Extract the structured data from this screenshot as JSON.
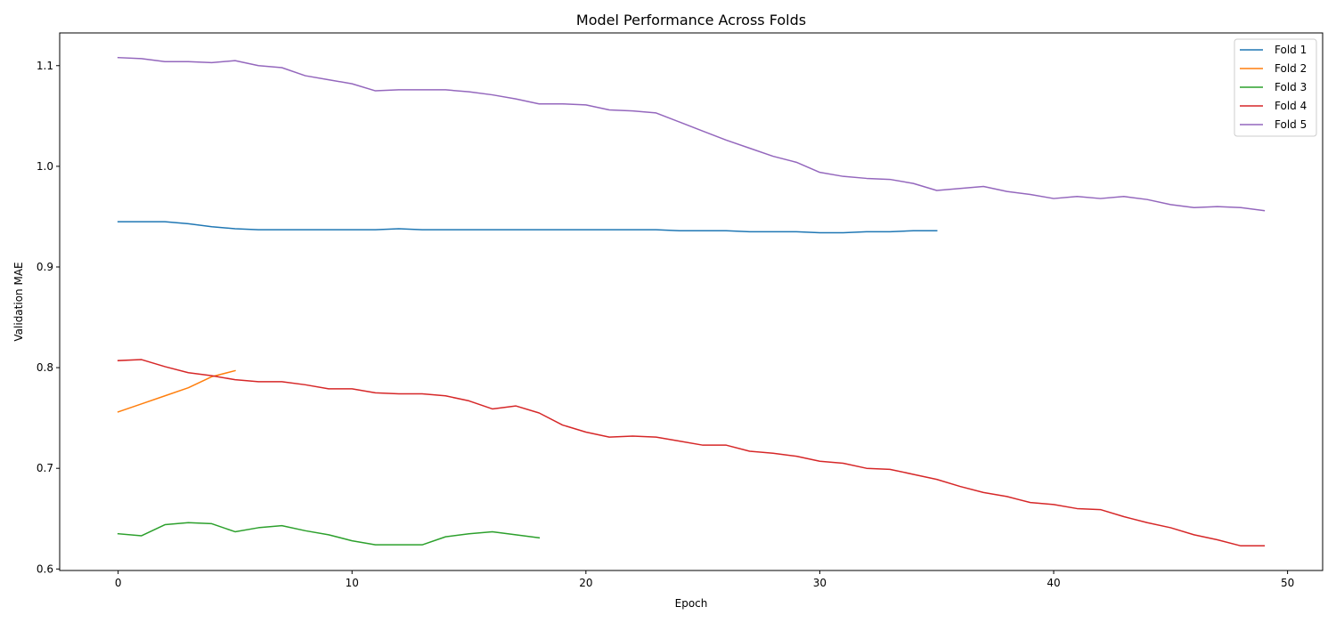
{
  "chart_data": {
    "type": "line",
    "title": "Model Performance Across Folds",
    "xlabel": "Epoch",
    "ylabel": "Validation MAE",
    "xlim": [
      -2.5,
      51.5
    ],
    "ylim": [
      0.5985,
      1.1325
    ],
    "xticks": [
      0,
      10,
      20,
      30,
      40,
      50
    ],
    "yticks": [
      0.6,
      0.7,
      0.8,
      0.9,
      1.0,
      1.1
    ],
    "xtick_labels": [
      "0",
      "10",
      "20",
      "30",
      "40",
      "50"
    ],
    "ytick_labels": [
      "0.6",
      "0.7",
      "0.8",
      "0.9",
      "1.0",
      "1.1"
    ],
    "grid": false,
    "legend_position": "top-right",
    "series": [
      {
        "name": "Fold 1",
        "color": "#1f77b4",
        "x": [
          0,
          1,
          2,
          3,
          4,
          5,
          6,
          7,
          8,
          9,
          10,
          11,
          12,
          13,
          14,
          15,
          16,
          17,
          18,
          19,
          20,
          21,
          22,
          23,
          24,
          25,
          26,
          27,
          28,
          29,
          30,
          31,
          32,
          33,
          34,
          35
        ],
        "values": [
          0.945,
          0.945,
          0.945,
          0.943,
          0.94,
          0.938,
          0.937,
          0.937,
          0.937,
          0.937,
          0.937,
          0.937,
          0.938,
          0.937,
          0.937,
          0.937,
          0.937,
          0.937,
          0.937,
          0.937,
          0.937,
          0.937,
          0.937,
          0.937,
          0.936,
          0.936,
          0.936,
          0.935,
          0.935,
          0.935,
          0.934,
          0.934,
          0.935,
          0.935,
          0.936,
          0.936
        ]
      },
      {
        "name": "Fold 2",
        "color": "#ff7f0e",
        "x": [
          0,
          1,
          2,
          3,
          4,
          5
        ],
        "values": [
          0.756,
          0.764,
          0.772,
          0.78,
          0.791,
          0.797
        ]
      },
      {
        "name": "Fold 3",
        "color": "#2ca02c",
        "x": [
          0,
          1,
          2,
          3,
          4,
          5,
          6,
          7,
          8,
          9,
          10,
          11,
          12,
          13,
          14,
          15,
          16,
          17,
          18
        ],
        "values": [
          0.635,
          0.633,
          0.644,
          0.646,
          0.645,
          0.637,
          0.641,
          0.643,
          0.638,
          0.634,
          0.628,
          0.624,
          0.624,
          0.624,
          0.632,
          0.635,
          0.637,
          0.634,
          0.631
        ]
      },
      {
        "name": "Fold 4",
        "color": "#d62728",
        "x": [
          0,
          1,
          2,
          3,
          4,
          5,
          6,
          7,
          8,
          9,
          10,
          11,
          12,
          13,
          14,
          15,
          16,
          17,
          18,
          19,
          20,
          21,
          22,
          23,
          24,
          25,
          26,
          27,
          28,
          29,
          30,
          31,
          32,
          33,
          34,
          35,
          36,
          37,
          38,
          39,
          40,
          41,
          42,
          43,
          44,
          45,
          46,
          47,
          48,
          49
        ],
        "values": [
          0.807,
          0.808,
          0.801,
          0.795,
          0.792,
          0.788,
          0.786,
          0.786,
          0.783,
          0.779,
          0.779,
          0.775,
          0.774,
          0.774,
          0.772,
          0.767,
          0.759,
          0.762,
          0.755,
          0.743,
          0.736,
          0.731,
          0.732,
          0.731,
          0.727,
          0.723,
          0.723,
          0.717,
          0.715,
          0.712,
          0.707,
          0.705,
          0.7,
          0.699,
          0.694,
          0.689,
          0.682,
          0.676,
          0.672,
          0.666,
          0.664,
          0.66,
          0.659,
          0.652,
          0.646,
          0.641,
          0.634,
          0.629,
          0.623,
          0.623
        ]
      },
      {
        "name": "Fold 5",
        "color": "#9467bd",
        "x": [
          0,
          1,
          2,
          3,
          4,
          5,
          6,
          7,
          8,
          9,
          10,
          11,
          12,
          13,
          14,
          15,
          16,
          17,
          18,
          19,
          20,
          21,
          22,
          23,
          24,
          25,
          26,
          27,
          28,
          29,
          30,
          31,
          32,
          33,
          34,
          35,
          36,
          37,
          38,
          39,
          40,
          41,
          42,
          43,
          44,
          45,
          46,
          47,
          48,
          49
        ],
        "values": [
          1.108,
          1.107,
          1.104,
          1.104,
          1.103,
          1.105,
          1.1,
          1.098,
          1.09,
          1.086,
          1.082,
          1.075,
          1.076,
          1.076,
          1.076,
          1.074,
          1.071,
          1.067,
          1.062,
          1.062,
          1.061,
          1.056,
          1.055,
          1.053,
          1.044,
          1.035,
          1.026,
          1.018,
          1.01,
          1.004,
          0.994,
          0.99,
          0.988,
          0.987,
          0.983,
          0.976,
          0.978,
          0.98,
          0.975,
          0.972,
          0.968,
          0.97,
          0.968,
          0.97,
          0.967,
          0.962,
          0.959,
          0.96,
          0.959,
          0.956
        ]
      }
    ]
  }
}
